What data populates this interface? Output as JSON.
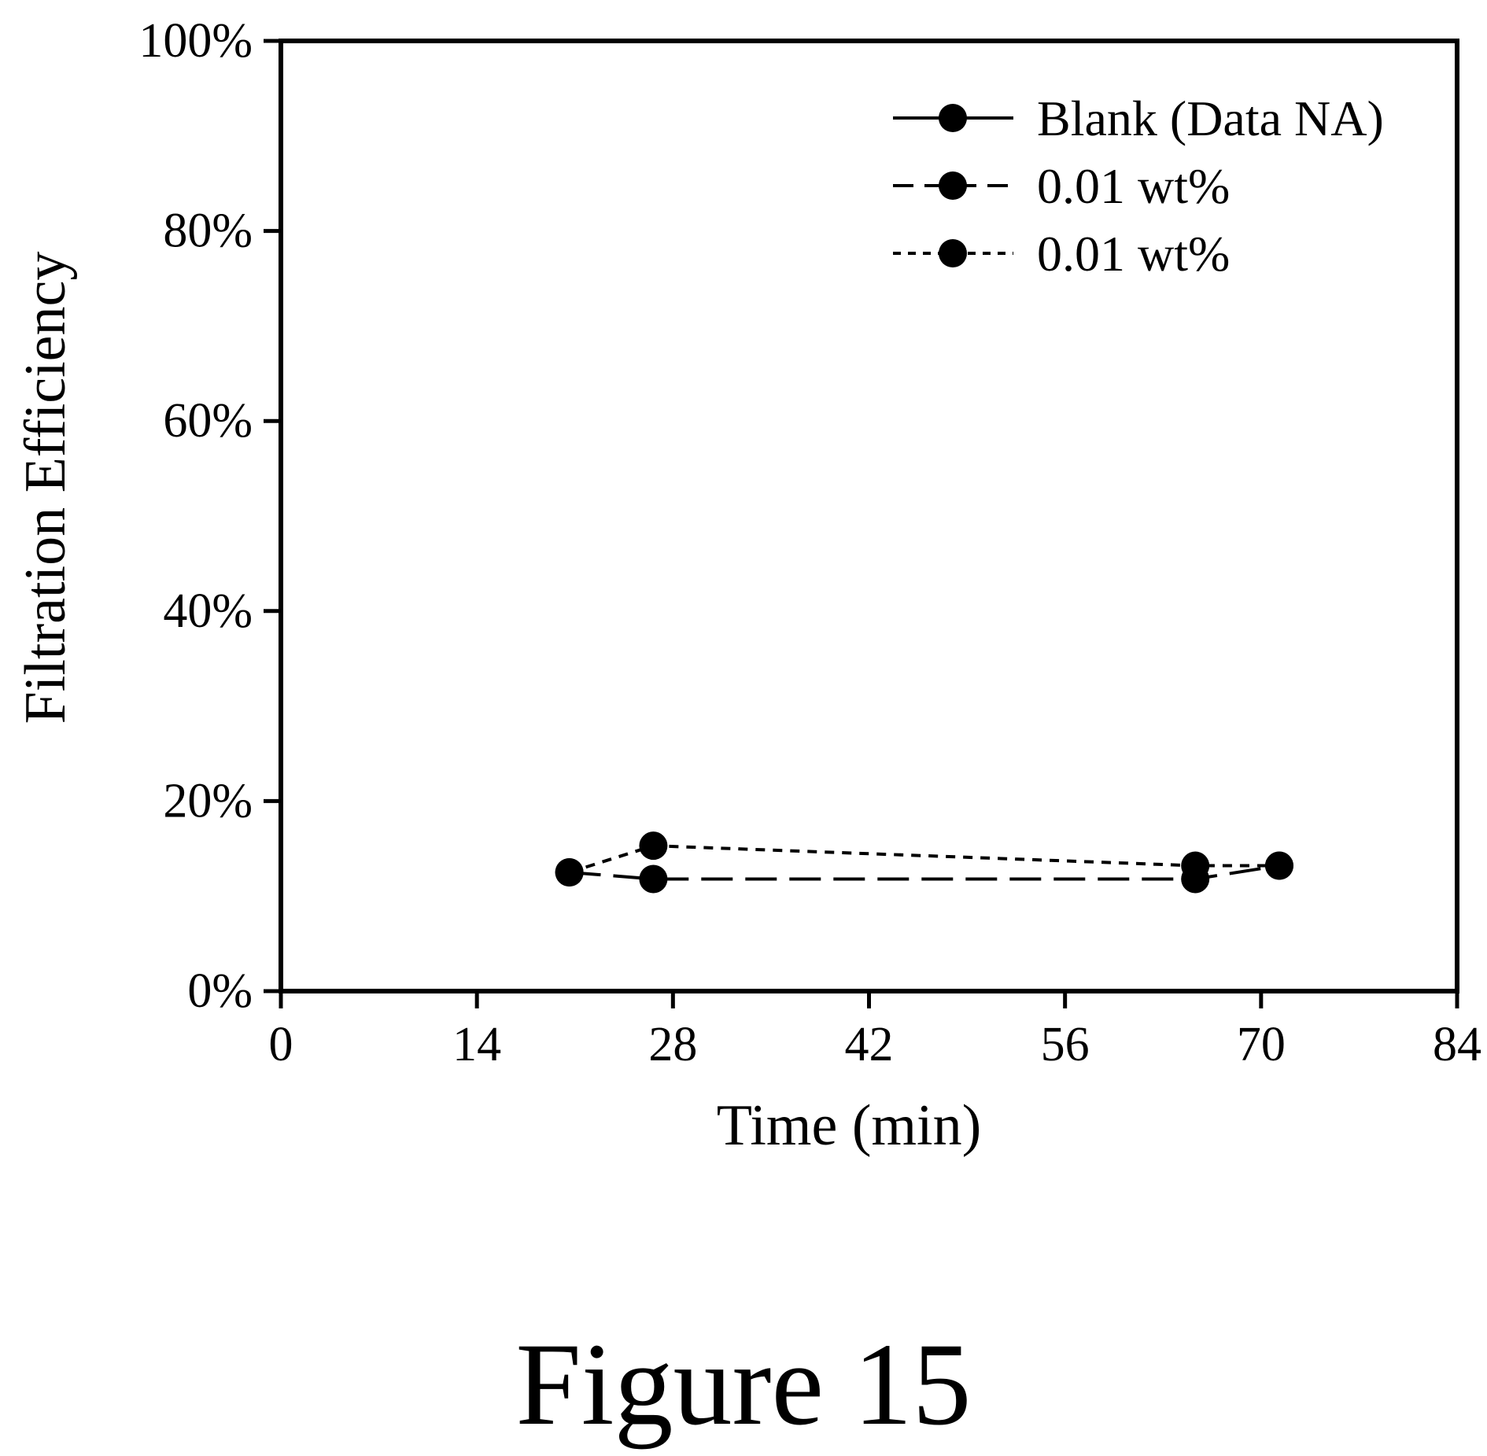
{
  "chart_data": {
    "type": "line",
    "xlabel": "Time (min)",
    "ylabel": "Filtration Efficiency",
    "xlim": [
      0,
      84
    ],
    "ylim": [
      0,
      100
    ],
    "x_ticks": [
      0,
      14,
      28,
      42,
      56,
      70,
      84
    ],
    "x_tick_labels": [
      "0",
      "14",
      "28",
      "42",
      "56",
      "70",
      "84"
    ],
    "y_ticks": [
      0,
      20,
      40,
      60,
      80,
      100
    ],
    "y_tick_labels": [
      "0%",
      "20%",
      "40%",
      "60%",
      "80%",
      "100%"
    ],
    "grid": false,
    "legend_position": "top-right",
    "series": [
      {
        "name": "Blank (Data NA)",
        "line_style": "solid",
        "marker": "filled-circle",
        "x": [],
        "y": []
      },
      {
        "name": "0.01 wt%",
        "line_style": "dashed",
        "marker": "filled-circle",
        "x": [
          20.6,
          26.6,
          65.3,
          71.3
        ],
        "y": [
          12.5,
          11.8,
          11.8,
          13.2
        ]
      },
      {
        "name": "0.01 wt%",
        "line_style": "dotted",
        "marker": "filled-circle",
        "x": [
          20.6,
          26.6,
          65.3,
          71.3
        ],
        "y": [
          12.5,
          15.3,
          13.2,
          13.2
        ]
      }
    ],
    "colors": {
      "line": "#000000",
      "marker": "#000000"
    }
  },
  "caption": "Figure 15"
}
